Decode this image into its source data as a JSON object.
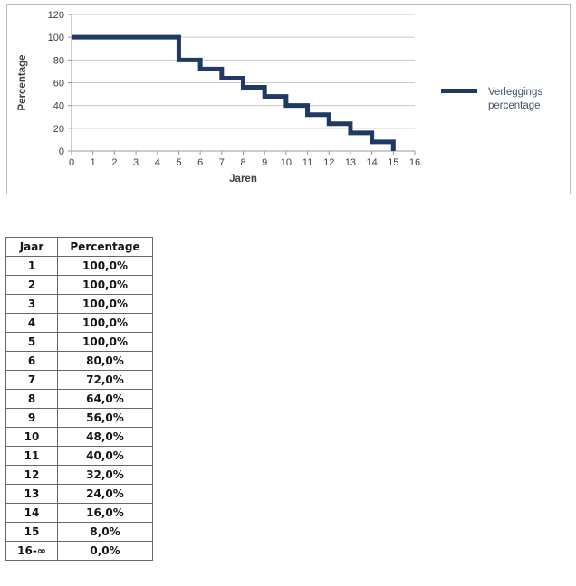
{
  "chart": {
    "frame_border_color": "#bcbcbc",
    "background": "#ffffff",
    "gridline_color": "#c9c9c9",
    "axis_line_color": "#9a9a9a",
    "tick_label_color": "#404040",
    "axis_title_color": "#404040",
    "legend": {
      "label_line1": "Verleggings",
      "label_line2": "percentage",
      "swatch_color": "#1f3864",
      "text_color": "#44546a"
    }
  },
  "chart_data": {
    "type": "line",
    "subtype": "step",
    "title": "",
    "xlabel": "Jaren",
    "ylabel": "Percentage",
    "xlim": [
      0,
      16
    ],
    "ylim": [
      0,
      120
    ],
    "x_ticks": [
      0,
      1,
      2,
      3,
      4,
      5,
      6,
      7,
      8,
      9,
      10,
      11,
      12,
      13,
      14,
      15,
      16
    ],
    "y_ticks": [
      0,
      20,
      40,
      60,
      80,
      100,
      120
    ],
    "grid": "horizontal",
    "legend_position": "right",
    "series": [
      {
        "name": "Verleggings percentage",
        "color": "#1f3864",
        "stroke_width": 5,
        "step_points": [
          [
            0,
            100
          ],
          [
            5,
            100
          ],
          [
            5,
            80
          ],
          [
            6,
            80
          ],
          [
            6,
            72
          ],
          [
            7,
            72
          ],
          [
            7,
            64
          ],
          [
            8,
            64
          ],
          [
            8,
            56
          ],
          [
            9,
            56
          ],
          [
            9,
            48
          ],
          [
            10,
            48
          ],
          [
            10,
            40
          ],
          [
            11,
            40
          ],
          [
            11,
            32
          ],
          [
            12,
            32
          ],
          [
            12,
            24
          ],
          [
            13,
            24
          ],
          [
            13,
            16
          ],
          [
            14,
            16
          ],
          [
            14,
            8
          ],
          [
            15,
            8
          ],
          [
            15,
            0
          ]
        ]
      }
    ]
  },
  "table": {
    "headers": [
      "Jaar",
      "Percentage"
    ],
    "rows": [
      [
        "1",
        "100,0%"
      ],
      [
        "2",
        "100,0%"
      ],
      [
        "3",
        "100,0%"
      ],
      [
        "4",
        "100,0%"
      ],
      [
        "5",
        "100,0%"
      ],
      [
        "6",
        "80,0%"
      ],
      [
        "7",
        "72,0%"
      ],
      [
        "8",
        "64,0%"
      ],
      [
        "9",
        "56,0%"
      ],
      [
        "10",
        "48,0%"
      ],
      [
        "11",
        "40,0%"
      ],
      [
        "12",
        "32,0%"
      ],
      [
        "13",
        "24,0%"
      ],
      [
        "14",
        "16,0%"
      ],
      [
        "15",
        "8,0%"
      ],
      [
        "16-∞",
        "0,0%"
      ]
    ]
  }
}
